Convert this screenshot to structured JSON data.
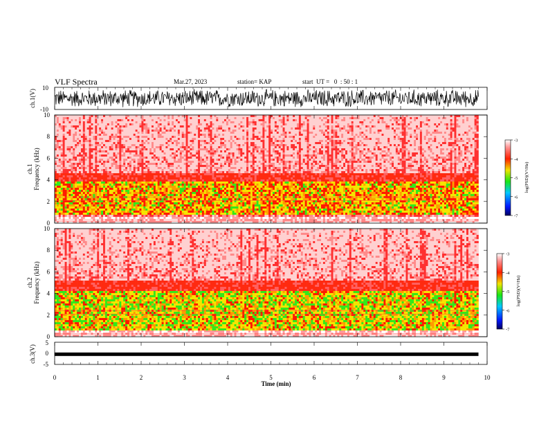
{
  "header": {
    "title": "VLF Spectra",
    "date": "Mar.27, 2023",
    "station": "station= KAP",
    "start": "start  UT =   0  : 50 : 1"
  },
  "chart_data": [
    {
      "type": "line",
      "panel": "ch1-waveform",
      "ylabel": "ch.1(V)",
      "ylim": [
        -10,
        10
      ],
      "yticks": [
        "10",
        "-10"
      ],
      "xlim": [
        0,
        10
      ],
      "note_visual": "dense waveform saturating near ±10 V"
    },
    {
      "type": "heatmap",
      "panel": "ch1-spectrogram",
      "ylabel": "ch.1\nFrequency (kHz)",
      "ylabel_line1": "ch.1",
      "ylabel_line2": "Frequency  (kHz)",
      "ylim": [
        0,
        10
      ],
      "yticks": [
        "0",
        "2",
        "4",
        "6",
        "8",
        "10"
      ],
      "xlim": [
        0,
        9.8
      ],
      "colorbar": {
        "label": "log(PSD)(V²/Hz)",
        "range": [
          -7,
          -3
        ],
        "ticks": [
          "-3",
          "-4",
          "-5",
          "-6",
          "-7"
        ]
      },
      "bands": {
        "strong_kHz": [
          0.8,
          3.8
        ],
        "falloff_top_kHz": 10
      }
    },
    {
      "type": "heatmap",
      "panel": "ch2-spectrogram",
      "ylabel_line1": "ch.2",
      "ylabel_line2": "Frequency  (kHz)",
      "ylim": [
        0,
        10
      ],
      "yticks": [
        "0",
        "2",
        "4",
        "6",
        "8",
        "10"
      ],
      "xlim": [
        0,
        9.8
      ],
      "colorbar": {
        "label": "log(PSD)(V²/Hz)",
        "range": [
          -7,
          -3
        ],
        "ticks": [
          "-3",
          "-4",
          "-5",
          "-6",
          "-7"
        ]
      },
      "bands": {
        "strong_kHz": [
          0.5,
          4.3
        ],
        "falloff_top_kHz": 10
      }
    },
    {
      "type": "line",
      "panel": "ch3-waveform",
      "ylabel": "ch.3(V)",
      "ylim": [
        -5,
        5
      ],
      "yticks": [
        "5",
        "0",
        "-5"
      ],
      "value_approx": -0.4,
      "xlim": [
        0,
        10
      ],
      "xlabel": "Time  (min)",
      "xticks": [
        "0",
        "1",
        "2",
        "3",
        "4",
        "5",
        "6",
        "7",
        "8",
        "9",
        "10"
      ]
    }
  ],
  "colors": {
    "low": "#1b3cff",
    "mid_low": "#19e615",
    "mid": "#f0e400",
    "high": "#ff1a00",
    "top": "#ffffff"
  }
}
